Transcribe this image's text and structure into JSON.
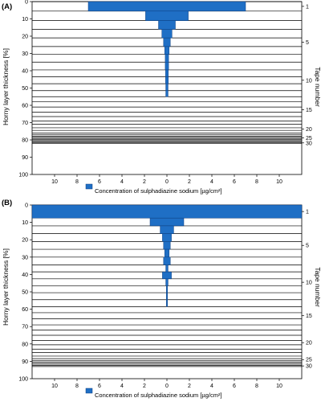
{
  "colors": {
    "bar": "#1f6fc5",
    "bar_stroke": "#0d3f80",
    "line": "#000000"
  },
  "chart_data": [
    {
      "panel_label": "(A)",
      "type": "bar",
      "orientation": "horizontal-symmetric",
      "ylabel": "Horny layer thickness [%]",
      "y2label": "Tape number",
      "legend": "Concentration of sulphadiazine sodium [µg/cm²]",
      "legend_position": "bottom-center",
      "ylim": [
        0,
        100
      ],
      "yticks": [
        "0",
        "10",
        "20",
        "30",
        "40",
        "50",
        "60",
        "70",
        "80",
        "90",
        "100"
      ],
      "xlim": [
        -12,
        12
      ],
      "xticks": [
        -10,
        -8,
        -6,
        -4,
        -2,
        0,
        2,
        4,
        6,
        8,
        10
      ],
      "xtick_labels": [
        "10",
        "8",
        "6",
        "4",
        "2",
        "0",
        "2",
        "4",
        "6",
        "8",
        "10"
      ],
      "y2ticks": [
        {
          "label": "1",
          "tape": 1
        },
        {
          "label": "5",
          "tape": 5
        },
        {
          "label": "10",
          "tape": 10
        },
        {
          "label": "15",
          "tape": 15
        },
        {
          "label": "20",
          "tape": 20
        },
        {
          "label": "25",
          "tape": 25
        },
        {
          "label": "30",
          "tape": 30
        }
      ],
      "tape_boundaries": [
        0,
        5.5,
        11,
        16,
        21,
        26,
        30.5,
        35,
        39.5,
        43.5,
        47.5,
        51.5,
        55,
        58,
        61,
        64,
        66.5,
        69,
        71,
        73,
        74.5,
        76,
        77,
        77.8,
        78.5,
        79.2,
        79.8,
        80.4,
        81,
        81.5,
        82
      ],
      "values": [
        7.0,
        1.9,
        0.75,
        0.45,
        0.3,
        0.2,
        0.15,
        0.15,
        0.12,
        0.12,
        0.1,
        0.1
      ]
    },
    {
      "panel_label": "(B)",
      "type": "bar",
      "orientation": "horizontal-symmetric",
      "ylabel": "Horny layer thickness [%]",
      "y2label": "Tape number",
      "legend": "Concentration of sulphadiazine sodium [µg/cm²]",
      "legend_position": "bottom-center",
      "ylim": [
        0,
        100
      ],
      "yticks": [
        "0",
        "10",
        "20",
        "30",
        "40",
        "50",
        "60",
        "70",
        "80",
        "90",
        "100"
      ],
      "xlim": [
        -12,
        12
      ],
      "xticks": [
        -10,
        -8,
        -6,
        -4,
        -2,
        0,
        2,
        4,
        6,
        8,
        10
      ],
      "xtick_labels": [
        "10",
        "8",
        "6",
        "4",
        "2",
        "0",
        "2",
        "4",
        "6",
        "8",
        "10"
      ],
      "y2ticks": [
        {
          "label": "1",
          "tape": 1
        },
        {
          "label": "5",
          "tape": 5
        },
        {
          "label": "10",
          "tape": 10
        },
        {
          "label": "15",
          "tape": 15
        },
        {
          "label": "20",
          "tape": 20
        },
        {
          "label": "25",
          "tape": 25
        },
        {
          "label": "30",
          "tape": 30
        }
      ],
      "tape_boundaries": [
        0,
        7.5,
        12,
        16.5,
        21,
        25.5,
        30,
        34.5,
        38.5,
        42.5,
        46.5,
        50.5,
        54.5,
        58.5,
        62,
        65.5,
        69,
        72,
        75,
        78,
        80.5,
        83,
        85,
        87,
        88.5,
        89.5,
        90.3,
        91,
        91.7,
        92.3,
        93
      ],
      "values": [
        12.0,
        1.5,
        0.6,
        0.4,
        0.3,
        0.2,
        0.3,
        0.1,
        0.4,
        0.1,
        0.05,
        0.05,
        0.05
      ]
    }
  ]
}
